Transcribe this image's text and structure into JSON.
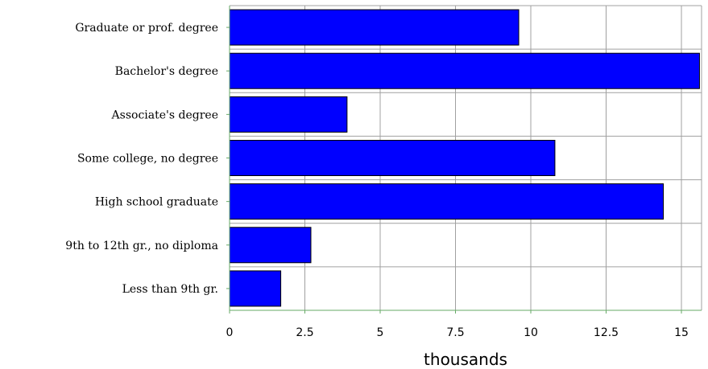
{
  "chart_data": {
    "type": "bar",
    "orientation": "horizontal",
    "title": "",
    "xlabel": "thousands",
    "ylabel": "",
    "xlim": [
      0,
      15.5
    ],
    "xticks": [
      0,
      2.5,
      5,
      7.5,
      10,
      12.5,
      15
    ],
    "xtick_labels": [
      "0",
      "2.5",
      "5",
      "7.5",
      "10",
      "12.5",
      "15"
    ],
    "categories": [
      "Graduate or prof. degree",
      "Bachelor's degree",
      "Associate's degree",
      "Some college, no degree",
      "High school graduate",
      "9th to 12th gr., no diploma",
      "Less than 9th gr."
    ],
    "values": [
      9.6,
      15.6,
      3.9,
      10.8,
      14.4,
      2.7,
      1.7
    ],
    "bar_color": "#0000ff",
    "grid": true,
    "legend": "none"
  }
}
